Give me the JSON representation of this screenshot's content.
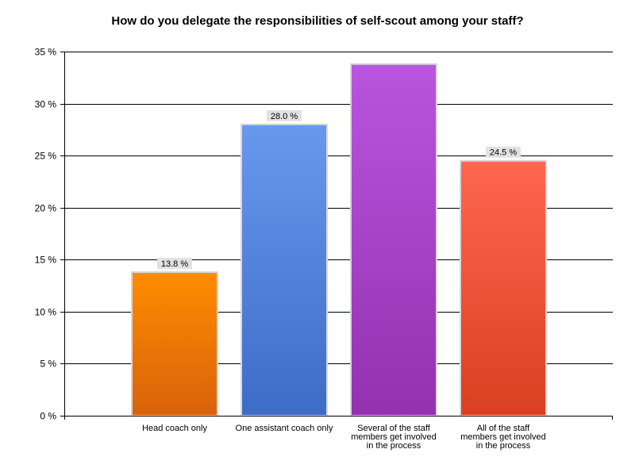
{
  "chart_data": {
    "type": "bar",
    "title": "How do you delegate the responsibilities of self-scout among your staff?",
    "xlabel": "",
    "ylabel": "",
    "ylim": [
      0,
      35
    ],
    "y_tick_step": 5,
    "y_tick_suffix": " %",
    "y_ticks": [
      "0 %",
      "5 %",
      "10 %",
      "15 %",
      "20 %",
      "25 %",
      "30 %",
      "35 %"
    ],
    "grid": true,
    "legend": "none",
    "categories": [
      [
        "Head coach only"
      ],
      [
        "One assistant coach only"
      ],
      [
        "Several of the staff",
        "members get involved",
        "in the process"
      ],
      [
        "All of the staff",
        "members get involved",
        "in the process"
      ]
    ],
    "values": [
      13.8,
      28.0,
      33.8,
      24.5
    ],
    "data_labels": [
      "13.8 %",
      "28.0 %",
      "",
      "24.5 %"
    ],
    "colors": [
      [
        "#ff8c00",
        "#d9620a"
      ],
      [
        "#6699ee",
        "#3d6cc6"
      ],
      [
        "#b955de",
        "#9331b0"
      ],
      [
        "#ff6650",
        "#d9401f"
      ]
    ]
  }
}
